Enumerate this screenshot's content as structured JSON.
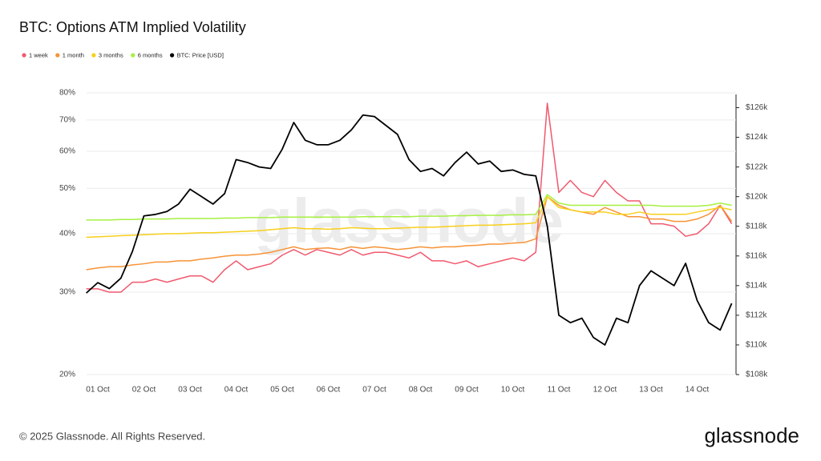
{
  "chart_data": {
    "type": "line",
    "title": "BTC: Options ATM Implied Volatility",
    "watermark": "glassnode",
    "footer": "© 2025 Glassnode. All Rights Reserved.",
    "logo": "glassnode",
    "log_scale": true,
    "grid": true,
    "legend": "top-left",
    "categories": [
      null,
      "01 Oct",
      null,
      null,
      null,
      "02 Oct",
      null,
      null,
      null,
      "03 Oct",
      null,
      null,
      null,
      "04 Oct",
      null,
      null,
      null,
      "05 Oct",
      null,
      null,
      null,
      "06 Oct",
      null,
      null,
      null,
      "07 Oct",
      null,
      null,
      null,
      "08 Oct",
      null,
      null,
      null,
      "09 Oct",
      null,
      null,
      null,
      "10 Oct",
      null,
      null,
      null,
      "11 Oct",
      null,
      null,
      null,
      "12 Oct",
      null,
      null,
      null,
      "13 Oct",
      null,
      null,
      null,
      "14 Oct",
      null,
      null,
      null
    ],
    "ylim": [
      20,
      80
    ],
    "yticks": [
      {
        "value": 20,
        "label": "20%"
      },
      {
        "value": 30,
        "label": "30%"
      },
      {
        "value": 40,
        "label": "40%"
      },
      {
        "value": 50,
        "label": "50%"
      },
      {
        "value": 60,
        "label": "60%"
      },
      {
        "value": 70,
        "label": "70%"
      },
      {
        "value": 80,
        "label": "80%"
      }
    ],
    "y2lim": [
      108000,
      127000
    ],
    "y2ticks": [
      {
        "value": 108000,
        "label": "$108k"
      },
      {
        "value": 110000,
        "label": "$110k"
      },
      {
        "value": 112000,
        "label": "$112k"
      },
      {
        "value": 114000,
        "label": "$114k"
      },
      {
        "value": 116000,
        "label": "$116k"
      },
      {
        "value": 118000,
        "label": "$118k"
      },
      {
        "value": 120000,
        "label": "$120k"
      },
      {
        "value": 122000,
        "label": "$122k"
      },
      {
        "value": 124000,
        "label": "$124k"
      },
      {
        "value": 126000,
        "label": "$126k"
      }
    ],
    "series": [
      {
        "name": "1 week",
        "color": "#f0596e",
        "values": [
          30.5,
          30.5,
          30,
          30,
          31.5,
          31.5,
          32,
          31.5,
          32,
          32.5,
          32.5,
          31.5,
          33.5,
          35,
          33.5,
          34,
          34.5,
          36,
          37,
          36,
          37,
          36.5,
          36,
          37,
          36,
          36.5,
          36.5,
          36,
          35.5,
          36.5,
          35,
          35,
          34.5,
          35,
          34,
          34.5,
          35,
          35.5,
          35,
          36.5,
          76,
          49,
          52,
          49,
          48,
          52,
          49,
          47,
          47,
          42,
          42,
          41.5,
          39.5,
          40,
          42,
          46,
          42
        ]
      },
      {
        "name": "1 month",
        "color": "#f79336",
        "values": [
          33.5,
          33.8,
          34,
          34,
          34.3,
          34.5,
          34.8,
          34.8,
          35,
          35,
          35.3,
          35.5,
          35.8,
          36,
          36,
          36.2,
          36.5,
          37,
          37.5,
          37,
          37.2,
          37.3,
          37,
          37.5,
          37.2,
          37.5,
          37.3,
          37,
          37.2,
          37.5,
          37.3,
          37.5,
          37.5,
          37.7,
          37.8,
          38,
          38,
          38.2,
          38.3,
          39,
          48,
          46,
          45,
          44.5,
          44,
          45.5,
          44.5,
          43.5,
          43.5,
          43,
          43,
          42.5,
          42.5,
          43,
          44,
          46,
          42.5
        ]
      },
      {
        "name": "3 months",
        "color": "#f7cf1b",
        "values": [
          39.3,
          39.4,
          39.5,
          39.6,
          39.7,
          39.8,
          39.9,
          40,
          40,
          40.1,
          40.2,
          40.2,
          40.3,
          40.4,
          40.5,
          40.6,
          40.8,
          41,
          41.2,
          41,
          41,
          40.9,
          41,
          41.2,
          41.1,
          41,
          41,
          41.1,
          41.2,
          41.3,
          41.3,
          41.4,
          41.5,
          41.6,
          41.7,
          41.7,
          41.8,
          41.9,
          42,
          42.2,
          48,
          45.5,
          45,
          44.5,
          44.5,
          44.5,
          44,
          44,
          44.5,
          44,
          44,
          44,
          44,
          44.5,
          45,
          45.5,
          45
        ]
      },
      {
        "name": "6 months",
        "color": "#a5f040",
        "values": [
          42.8,
          42.8,
          42.8,
          42.9,
          42.9,
          43,
          43,
          43,
          43.1,
          43.1,
          43.1,
          43.1,
          43.2,
          43.2,
          43.3,
          43.3,
          43.3,
          43.4,
          43.4,
          43.4,
          43.4,
          43.4,
          43.4,
          43.4,
          43.5,
          43.5,
          43.5,
          43.5,
          43.5,
          43.6,
          43.6,
          43.6,
          43.7,
          43.7,
          43.8,
          43.8,
          43.8,
          43.9,
          43.9,
          44,
          48.5,
          46.5,
          46,
          46,
          46,
          46,
          46,
          46,
          46,
          46,
          45.8,
          45.8,
          45.8,
          45.8,
          46,
          46.5,
          46
        ]
      },
      {
        "name": "BTC: Price [USD]",
        "color": "#000000",
        "axis": "y2",
        "values": [
          113500,
          114200,
          113800,
          114500,
          116300,
          118700,
          118800,
          119000,
          119500,
          120500,
          120000,
          119500,
          120200,
          122500,
          122300,
          122000,
          121900,
          123200,
          125000,
          123800,
          123500,
          123500,
          123800,
          124500,
          125500,
          125400,
          124800,
          124200,
          122500,
          121700,
          121900,
          121400,
          122300,
          123000,
          122200,
          122400,
          121700,
          121800,
          121500,
          121400,
          118000,
          112000,
          111500,
          111800,
          110500,
          110000,
          111800,
          111500,
          114000,
          115000,
          114500,
          114000,
          115500,
          113000,
          111500,
          111000,
          112800
        ]
      }
    ]
  }
}
